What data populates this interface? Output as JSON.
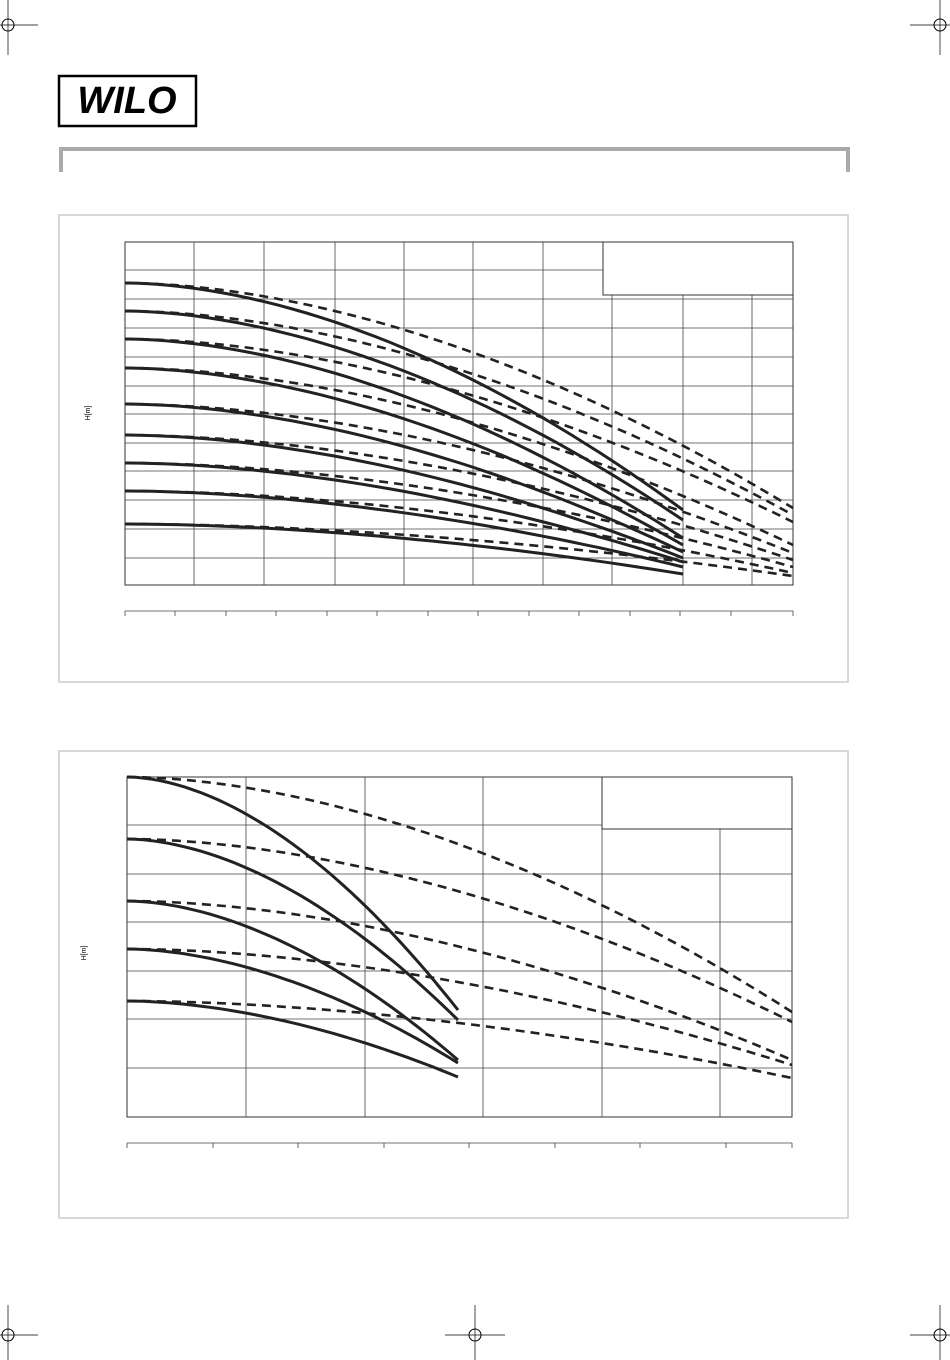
{
  "header": {
    "logo": "WILO"
  },
  "charts": [
    {
      "y_axis_label": "H[m]"
    },
    {
      "y_axis_label": "H[m]"
    }
  ]
}
